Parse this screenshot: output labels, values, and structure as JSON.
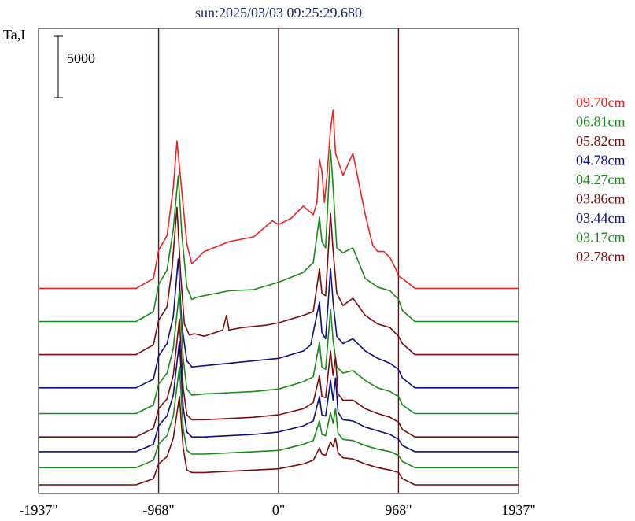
{
  "chart_data": {
    "type": "line",
    "title": "sun:2025/03/03 09:25:29.680",
    "ylabel": "Ta,I",
    "scale_bar_label": "5000",
    "scale_bar_value": 5000,
    "x_range": [
      -1937,
      1937
    ],
    "x_ticks": [
      {
        "value": -1937,
        "label": "-1937\""
      },
      {
        "value": -968,
        "label": "-968\""
      },
      {
        "value": 0,
        "label": "0\""
      },
      {
        "value": 968,
        "label": "968\""
      },
      {
        "value": 1937,
        "label": "1937\""
      }
    ],
    "vlines": [
      -968,
      0,
      968
    ],
    "colors": {
      "red": "#ee2222",
      "green": "#1a8a1a",
      "darkred": "#7a0c0c",
      "blue": "#101080",
      "vline": "#4a1818",
      "title": "#1a2a66"
    },
    "series": [
      {
        "name": "09.70cm",
        "color": "#ee2222",
        "offset": 16000,
        "x": [
          -1937,
          -1150,
          -1010,
          -968,
          -900,
          -850,
          -820,
          -780,
          -740,
          -700,
          -600,
          -400,
          -200,
          -50,
          0,
          100,
          200,
          280,
          310,
          330,
          350,
          370,
          390,
          420,
          440,
          460,
          520,
          600,
          700,
          760,
          800,
          850,
          900,
          950,
          968,
          1000,
          1100,
          1937
        ],
        "y": [
          0,
          0,
          800,
          3100,
          4300,
          8200,
          12000,
          7800,
          3600,
          2000,
          3000,
          3800,
          4200,
          5500,
          5200,
          5700,
          6700,
          6000,
          7000,
          10500,
          9500,
          7000,
          9000,
          13000,
          14500,
          11000,
          9200,
          11000,
          6000,
          3500,
          3000,
          3000,
          2500,
          1500,
          1000,
          800,
          0,
          0
        ]
      },
      {
        "name": "06.81cm",
        "color": "#1a8a1a",
        "offset": 13300,
        "x": [
          -1937,
          -1150,
          -1010,
          -968,
          -900,
          -850,
          -810,
          -780,
          -740,
          -700,
          -650,
          -400,
          -200,
          0,
          200,
          280,
          330,
          350,
          380,
          420,
          440,
          470,
          520,
          600,
          700,
          800,
          900,
          968,
          1000,
          1100,
          1937
        ],
        "y": [
          0,
          0,
          800,
          3000,
          4200,
          7500,
          11900,
          7000,
          2800,
          1800,
          2000,
          2500,
          2600,
          3200,
          4000,
          4800,
          8500,
          6500,
          6000,
          14000,
          11000,
          6000,
          5600,
          6000,
          3500,
          2800,
          2500,
          1800,
          900,
          0,
          0
        ]
      },
      {
        "name": "05.82cm",
        "color": "#7a0c0c",
        "offset": 10600,
        "x": [
          -1937,
          -1150,
          -1010,
          -968,
          -900,
          -860,
          -820,
          -790,
          -760,
          -720,
          -680,
          -600,
          -450,
          -420,
          -400,
          -300,
          -100,
          0,
          200,
          280,
          330,
          350,
          380,
          420,
          440,
          470,
          520,
          600,
          700,
          800,
          900,
          968,
          1000,
          1100,
          1937
        ],
        "y": [
          0,
          0,
          800,
          2800,
          3900,
          7000,
          12000,
          6500,
          2500,
          1600,
          1700,
          1500,
          2000,
          3200,
          2000,
          2200,
          2400,
          2600,
          3200,
          3500,
          7000,
          5000,
          4800,
          11500,
          8500,
          5000,
          4000,
          4600,
          3200,
          2500,
          2200,
          1500,
          900,
          0,
          0
        ]
      },
      {
        "name": "04.78cm",
        "color": "#101080",
        "offset": 7900,
        "x": [
          -1937,
          -1150,
          -1010,
          -968,
          -900,
          -850,
          -810,
          -780,
          -740,
          -700,
          -600,
          -400,
          -200,
          0,
          200,
          260,
          330,
          350,
          380,
          420,
          440,
          470,
          520,
          600,
          700,
          800,
          900,
          968,
          1000,
          1100,
          1937
        ],
        "y": [
          0,
          0,
          700,
          2600,
          3600,
          5800,
          10500,
          5000,
          2200,
          1700,
          1800,
          2000,
          2200,
          2400,
          3000,
          3500,
          7000,
          4500,
          4000,
          9700,
          7000,
          4200,
          3600,
          4000,
          3000,
          2400,
          2000,
          1500,
          800,
          0,
          0
        ]
      },
      {
        "name": "04.27cm",
        "color": "#1a8a1a",
        "offset": 5800,
        "x": [
          -1937,
          -1150,
          -1010,
          -968,
          -900,
          -850,
          -800,
          -770,
          -740,
          -700,
          -600,
          -400,
          -200,
          0,
          200,
          280,
          330,
          350,
          380,
          420,
          440,
          470,
          520,
          600,
          700,
          800,
          900,
          968,
          1000,
          1100,
          1937
        ],
        "y": [
          0,
          0,
          700,
          2400,
          3300,
          5300,
          10000,
          4500,
          2000,
          1500,
          1600,
          1700,
          1800,
          2000,
          2600,
          3000,
          5800,
          3800,
          3600,
          8500,
          6000,
          3800,
          3300,
          3500,
          2700,
          2100,
          1800,
          1400,
          700,
          0,
          0
        ]
      },
      {
        "name": "03.86cm",
        "color": "#7a0c0c",
        "offset": 3900,
        "x": [
          -1937,
          -1150,
          -1010,
          -968,
          -900,
          -850,
          -800,
          -770,
          -740,
          -700,
          -600,
          -400,
          -200,
          0,
          200,
          280,
          330,
          350,
          380,
          420,
          440,
          460,
          480,
          520,
          600,
          700,
          800,
          900,
          968,
          1000,
          1100,
          1937
        ],
        "y": [
          0,
          0,
          700,
          2300,
          3100,
          5000,
          9600,
          4000,
          1800,
          1400,
          1400,
          1500,
          1600,
          1800,
          2300,
          2800,
          5000,
          3300,
          3200,
          7000,
          5000,
          6500,
          3500,
          3000,
          3000,
          2300,
          1900,
          1600,
          1200,
          600,
          0,
          0
        ]
      },
      {
        "name": "03.44cm",
        "color": "#101080",
        "offset": 2700,
        "x": [
          -1937,
          -1150,
          -1010,
          -968,
          -900,
          -850,
          -800,
          -770,
          -740,
          -700,
          -600,
          -400,
          -200,
          0,
          200,
          280,
          330,
          350,
          380,
          420,
          440,
          460,
          480,
          520,
          600,
          700,
          800,
          900,
          968,
          1000,
          1100,
          1937
        ],
        "y": [
          0,
          0,
          600,
          2100,
          2900,
          4600,
          9000,
          3600,
          1600,
          1200,
          1200,
          1300,
          1400,
          1600,
          2100,
          2500,
          4500,
          3000,
          2900,
          5800,
          4200,
          6000,
          3200,
          2600,
          2500,
          2000,
          1700,
          1400,
          1000,
          500,
          0,
          0
        ]
      },
      {
        "name": "03.17cm",
        "color": "#1a8a1a",
        "offset": 1400,
        "x": [
          -1937,
          -1150,
          -1010,
          -968,
          -900,
          -850,
          -800,
          -770,
          -740,
          -700,
          -600,
          -400,
          -200,
          0,
          200,
          280,
          330,
          350,
          380,
          420,
          440,
          460,
          480,
          520,
          600,
          700,
          800,
          900,
          968,
          1000,
          1100,
          1937
        ],
        "y": [
          0,
          0,
          600,
          1900,
          2600,
          4200,
          8200,
          3200,
          1400,
          1100,
          1100,
          1200,
          1300,
          1400,
          1900,
          2200,
          3800,
          2700,
          2600,
          4500,
          3600,
          4800,
          2800,
          2300,
          2200,
          1800,
          1500,
          1300,
          1000,
          500,
          0,
          0
        ]
      },
      {
        "name": "02.78cm",
        "color": "#7a0c0c",
        "offset": 0,
        "x": [
          -1937,
          -1150,
          -1010,
          -968,
          -900,
          -850,
          -800,
          -770,
          -740,
          -700,
          -600,
          -400,
          -200,
          0,
          200,
          280,
          330,
          350,
          380,
          420,
          440,
          460,
          480,
          520,
          600,
          700,
          800,
          900,
          968,
          1000,
          1100,
          1937
        ],
        "y": [
          0,
          0,
          500,
          1700,
          2300,
          3800,
          7200,
          3000,
          1200,
          1000,
          1000,
          1100,
          1200,
          1300,
          1700,
          2000,
          3000,
          2500,
          2400,
          3500,
          3100,
          3800,
          2600,
          2200,
          2100,
          1700,
          1400,
          1200,
          1000,
          500,
          0,
          0
        ]
      }
    ]
  }
}
